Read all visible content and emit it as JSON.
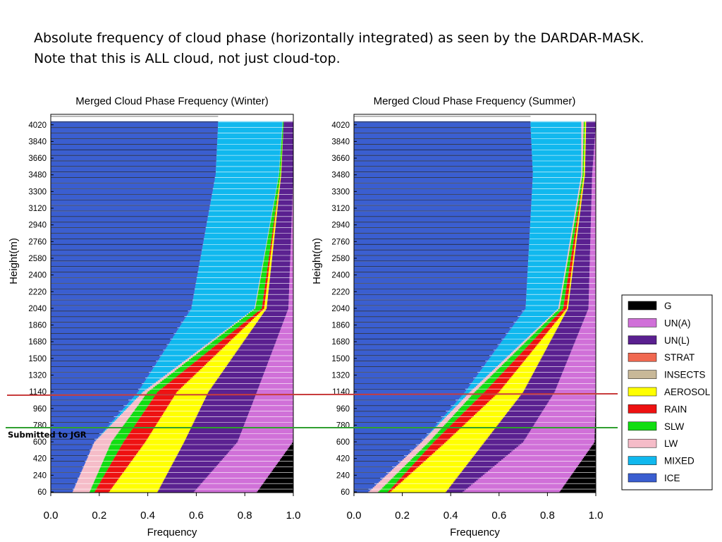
{
  "caption": {
    "line1": "Absolute frequency of cloud phase (horizontally integrated) as seen by the DARDAR-MASK.",
    "line2": "Note that this is ALL cloud, not just cloud-top."
  },
  "note": "Submitted to JGR",
  "colors": {
    "G": "#000000",
    "UN(A)": "#d070d8",
    "UN(L)": "#5a2090",
    "STRAT": "#f06850",
    "INSECTS": "#c8b898",
    "AEROSOL": "#ffff00",
    "RAIN": "#ee1111",
    "SLW": "#11dd11",
    "LW": "#f5bcc8",
    "MIXED": "#10b8ee",
    "ICE": "#3a5ed0",
    "red_line": "#c83c3c",
    "green_line": "#30a030"
  },
  "legend": [
    "G",
    "UN(A)",
    "UN(L)",
    "STRAT",
    "INSECTS",
    "AEROSOL",
    "RAIN",
    "SLW",
    "LW",
    "MIXED",
    "ICE"
  ],
  "chart_data": [
    {
      "type": "area",
      "title": "Merged Cloud Phase Frequency (Winter)",
      "xlabel": "Frequency",
      "ylabel": "Height(m)",
      "xlim": [
        0,
        1
      ],
      "xticks": [
        "0.0",
        "0.2",
        "0.4",
        "0.6",
        "0.8",
        "1.0"
      ],
      "yticks": [
        60,
        240,
        420,
        600,
        780,
        960,
        1140,
        1320,
        1500,
        1680,
        1860,
        2040,
        2220,
        2400,
        2580,
        2760,
        2940,
        3120,
        3300,
        3480,
        3660,
        3840,
        4020
      ],
      "y_knots": [
        60,
        600,
        1140,
        2040,
        3480,
        4020
      ],
      "series": [
        {
          "name": "ICE",
          "cumulative": [
            0.09,
            0.18,
            0.36,
            0.58,
            0.68,
            0.69
          ]
        },
        {
          "name": "MIXED",
          "cumulative": [
            0.09,
            0.18,
            0.38,
            0.84,
            0.94,
            0.955
          ]
        },
        {
          "name": "LW",
          "cumulative": [
            0.16,
            0.25,
            0.4,
            0.843,
            0.941,
            0.956
          ]
        },
        {
          "name": "SLW",
          "cumulative": [
            0.18,
            0.3,
            0.44,
            0.87,
            0.947,
            0.96
          ]
        },
        {
          "name": "RAIN",
          "cumulative": [
            0.24,
            0.39,
            0.52,
            0.88,
            0.947,
            0.96
          ]
        },
        {
          "name": "AEROSOL",
          "cumulative": [
            0.44,
            0.55,
            0.65,
            0.89,
            0.95,
            0.96
          ]
        },
        {
          "name": "INSECTS",
          "cumulative": [
            0.44,
            0.55,
            0.65,
            0.89,
            0.95,
            0.96
          ]
        },
        {
          "name": "STRAT",
          "cumulative": [
            0.44,
            0.55,
            0.65,
            0.89,
            0.95,
            0.96
          ]
        },
        {
          "name": "UN(L)",
          "cumulative": [
            0.59,
            0.77,
            0.85,
            0.98,
            1.0,
            1.0
          ]
        },
        {
          "name": "UN(A)",
          "cumulative": [
            0.85,
            0.998,
            1.0,
            1.0,
            1.0,
            1.0
          ]
        },
        {
          "name": "G",
          "cumulative": [
            1.0,
            1.0,
            1.0,
            1.0,
            1.0,
            1.0
          ]
        }
      ]
    },
    {
      "type": "area",
      "title": "Merged Cloud Phase Frequency (Summer)",
      "xlabel": "Frequency",
      "ylabel": "Height(m)",
      "xlim": [
        0,
        1
      ],
      "xticks": [
        "0.0",
        "0.2",
        "0.4",
        "0.6",
        "0.8",
        "1.0"
      ],
      "yticks": [
        60,
        240,
        420,
        600,
        780,
        960,
        1140,
        1320,
        1500,
        1680,
        1860,
        2040,
        2220,
        2400,
        2580,
        2760,
        2940,
        3120,
        3300,
        3480,
        3660,
        3840,
        4020
      ],
      "y_knots": [
        60,
        600,
        1140,
        2040,
        3480,
        4020
      ],
      "series": [
        {
          "name": "ICE",
          "cumulative": [
            0.06,
            0.28,
            0.46,
            0.71,
            0.74,
            0.73
          ]
        },
        {
          "name": "MIXED",
          "cumulative": [
            0.06,
            0.28,
            0.48,
            0.845,
            0.94,
            0.94
          ]
        },
        {
          "name": "LW",
          "cumulative": [
            0.1,
            0.31,
            0.5,
            0.85,
            0.945,
            0.95
          ]
        },
        {
          "name": "SLW",
          "cumulative": [
            0.14,
            0.33,
            0.54,
            0.865,
            0.95,
            0.955
          ]
        },
        {
          "name": "RAIN",
          "cumulative": [
            0.15,
            0.38,
            0.6,
            0.88,
            0.95,
            0.955
          ]
        },
        {
          "name": "AEROSOL",
          "cumulative": [
            0.38,
            0.54,
            0.7,
            0.885,
            0.955,
            0.96
          ]
        },
        {
          "name": "INSECTS",
          "cumulative": [
            0.38,
            0.54,
            0.7,
            0.885,
            0.955,
            0.96
          ]
        },
        {
          "name": "STRAT",
          "cumulative": [
            0.38,
            0.54,
            0.7,
            0.885,
            0.955,
            0.96
          ]
        },
        {
          "name": "UN(L)",
          "cumulative": [
            0.45,
            0.7,
            0.83,
            0.97,
            0.985,
            1.0
          ]
        },
        {
          "name": "UN(A)",
          "cumulative": [
            0.85,
            0.995,
            1.0,
            1.0,
            1.0,
            1.0
          ]
        },
        {
          "name": "G",
          "cumulative": [
            1.0,
            1.0,
            1.0,
            1.0,
            1.0,
            1.0
          ]
        }
      ]
    }
  ]
}
